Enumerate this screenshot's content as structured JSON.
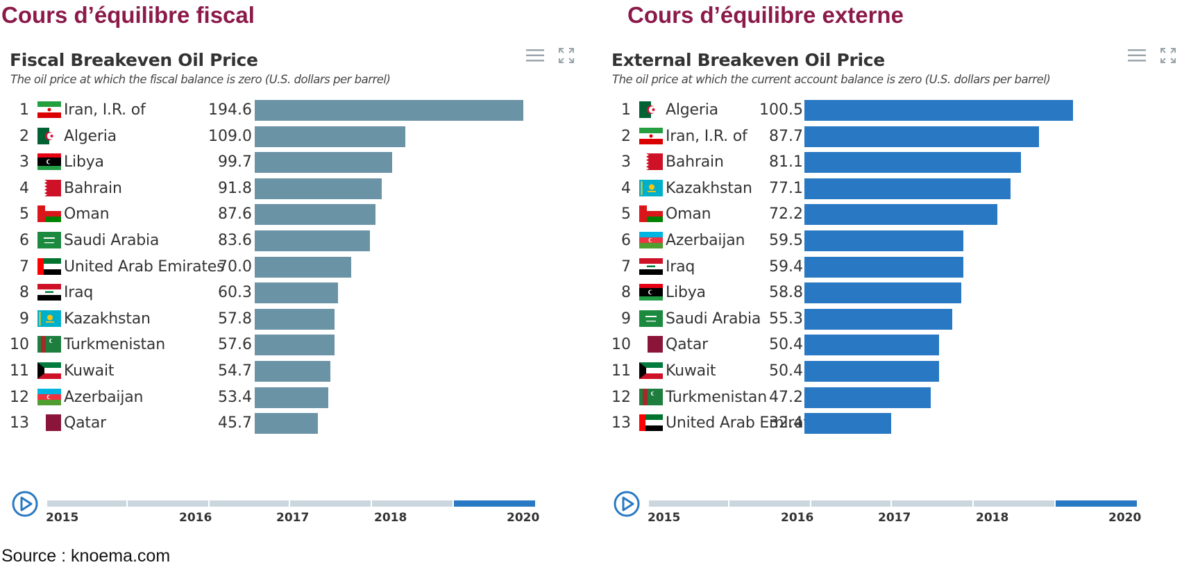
{
  "headings": {
    "left": "Cours d’équilibre fiscal",
    "right": "Cours d’équilibre externe"
  },
  "source": "Source : knoema.com",
  "colors": {
    "heading": "#8b1a4a",
    "fiscal_bar": "#6b93a6",
    "external_bar": "#2878c3",
    "timeline_track": "#cbd7de",
    "timeline_active": "#2878c3"
  },
  "icons": [
    "menu-icon",
    "expand-icon",
    "play-icon"
  ],
  "timeline": {
    "labels": [
      "2015",
      "2016",
      "2017",
      "2018",
      "2020"
    ],
    "active_segment": "2020"
  },
  "chart_data": [
    {
      "type": "bar",
      "orientation": "horizontal",
      "title": "Fiscal Breakeven Oil Price",
      "subtitle": "The oil price at which the fiscal balance is zero (U.S. dollars per barrel)",
      "ranks": [
        "1",
        "2",
        "3",
        "4",
        "5",
        "6",
        "7",
        "8",
        "9",
        "10",
        "11",
        "12",
        "13"
      ],
      "categories": [
        "Iran, I.R. of",
        "Algeria",
        "Libya",
        "Bahrain",
        "Oman",
        "Saudi Arabia",
        "United Arab Emirates",
        "Iraq",
        "Kazakhstan",
        "Turkmenistan",
        "Kuwait",
        "Azerbaijan",
        "Qatar"
      ],
      "values": [
        194.6,
        109.0,
        99.7,
        91.8,
        87.6,
        83.6,
        70.0,
        60.3,
        57.8,
        57.6,
        54.7,
        53.4,
        45.7
      ],
      "value_labels": [
        "194.6",
        "109.0",
        "99.7",
        "91.8",
        "87.6",
        "83.6",
        "70.0",
        "60.3",
        "57.8",
        "57.6",
        "54.7",
        "53.4",
        "45.7"
      ],
      "xlim": [
        0,
        194.6
      ],
      "color": "#6b93a6",
      "grid": false,
      "legend": "none"
    },
    {
      "type": "bar",
      "orientation": "horizontal",
      "title": "External Breakeven Oil Price",
      "subtitle": "The oil price at which the current account balance is zero (U.S. dollars per barrel)",
      "ranks": [
        "1",
        "2",
        "3",
        "4",
        "5",
        "6",
        "7",
        "8",
        "9",
        "10",
        "11",
        "12",
        "13"
      ],
      "categories": [
        "Algeria",
        "Iran, I.R. of",
        "Bahrain",
        "Kazakhstan",
        "Oman",
        "Azerbaijan",
        "Iraq",
        "Libya",
        "Saudi Arabia",
        "Qatar",
        "Kuwait",
        "Turkmenistan",
        "United Arab Emirates"
      ],
      "values": [
        100.5,
        87.7,
        81.1,
        77.1,
        72.2,
        59.5,
        59.4,
        58.8,
        55.3,
        50.4,
        50.4,
        47.2,
        32.4
      ],
      "value_labels": [
        "100.5",
        "87.7",
        "81.1",
        "77.1",
        "72.2",
        "59.5",
        "59.4",
        "58.8",
        "55.3",
        "50.4",
        "50.4",
        "47.2",
        "32.4"
      ],
      "xlim": [
        0,
        100.5
      ],
      "color": "#2878c3",
      "grid": false,
      "legend": "none"
    }
  ]
}
